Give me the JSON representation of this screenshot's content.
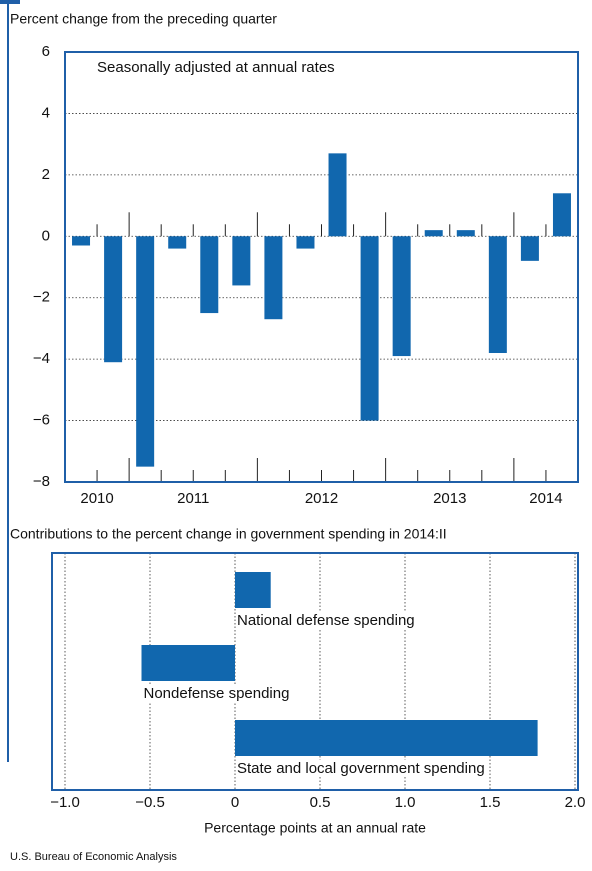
{
  "chart_data": [
    {
      "type": "bar",
      "title": "Percent change from the preceding quarter",
      "annotation": "Seasonally adjusted at annual rates",
      "categories": [
        "2010",
        "2010",
        "2011",
        "2011",
        "2011",
        "2011",
        "2012",
        "2012",
        "2012",
        "2012",
        "2013",
        "2013",
        "2013",
        "2013",
        "2014",
        "2014"
      ],
      "values": [
        -0.3,
        -4.1,
        -7.5,
        -0.4,
        -2.5,
        -1.6,
        -2.7,
        -0.4,
        2.7,
        -6.0,
        -3.9,
        0.2,
        0.2,
        -3.8,
        -0.8,
        1.4
      ],
      "color": "#1167ae",
      "ylim": [
        -8,
        6
      ],
      "yticks": [
        {
          "value": -8,
          "label": "−8"
        },
        {
          "value": -6,
          "label": "−6"
        },
        {
          "value": -4,
          "label": "−4"
        },
        {
          "value": -2,
          "label": "−2"
        },
        0,
        2,
        4,
        6
      ],
      "grid": true
    },
    {
      "type": "barh",
      "title": "Contributions to the percent change in government spending in 2014:II",
      "xlabel": "Percentage points at an annual rate",
      "categories": [
        "National defense spending",
        "Nondefense spending",
        "State and local government spending"
      ],
      "values": [
        0.21,
        -0.55,
        1.78
      ],
      "color": "#1167ae",
      "xlim": [
        -1.0,
        2.0
      ],
      "xticks": [
        {
          "value": -1.0,
          "label": "−1.0"
        },
        {
          "value": -0.5,
          "label": "−0.5"
        },
        0,
        0.5,
        {
          "value": 1.0,
          "label": "1.0"
        },
        1.5,
        {
          "value": 2.0,
          "label": "2.0"
        }
      ],
      "grid": true
    }
  ],
  "source": "U.S. Bureau of Economic Analysis"
}
